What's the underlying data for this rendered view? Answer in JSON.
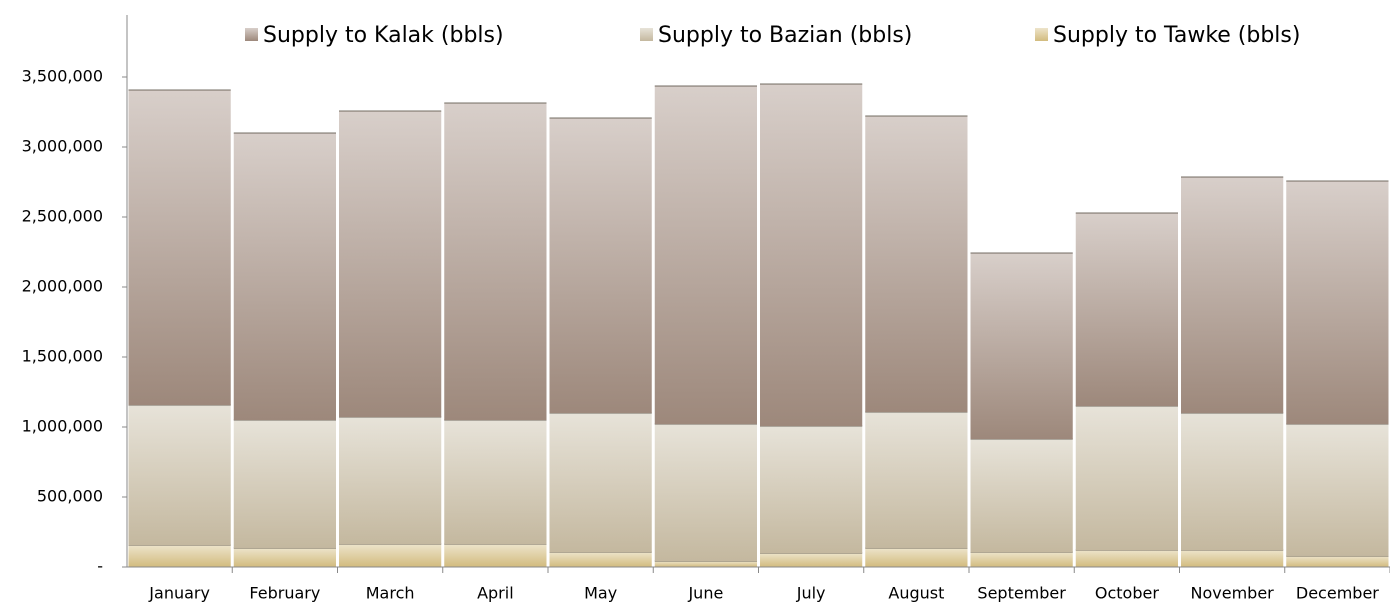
{
  "chart_data": {
    "type": "stacked_bar",
    "categories": [
      "January",
      "February",
      "March",
      "April",
      "May",
      "June",
      "July",
      "August",
      "September",
      "October",
      "November",
      "December"
    ],
    "series": [
      {
        "name": "Supply to Tawke (bbls)",
        "color": "#d2bb7e",
        "values": [
          157000,
          136000,
          164000,
          164000,
          107000,
          43000,
          100000,
          136000,
          107000,
          121000,
          121000,
          79000
        ]
      },
      {
        "name": "Supply to Bazian (bbls)",
        "color": "#c4b89f",
        "values": [
          1000000,
          914000,
          907000,
          886000,
          993000,
          978000,
          907000,
          971000,
          807000,
          1029000,
          979000,
          942000
        ]
      },
      {
        "name": "Supply to Kalak (bbls)",
        "color": "#9d887b",
        "values": [
          2250000,
          2050000,
          2186000,
          2264000,
          2107000,
          2415000,
          2443000,
          2114000,
          1329000,
          1379000,
          1686000,
          1736000
        ]
      }
    ],
    "ylim": [
      0,
      4000000
    ],
    "yticks": [
      {
        "value": 0,
        "label": "-"
      },
      {
        "value": 500000,
        "label": "500,000"
      },
      {
        "value": 1000000,
        "label": "1,000,000"
      },
      {
        "value": 1500000,
        "label": "1,500,000"
      },
      {
        "value": 2000000,
        "label": "2,000,000"
      },
      {
        "value": 2500000,
        "label": "2,500,000"
      },
      {
        "value": 3000000,
        "label": "3,000,000"
      },
      {
        "value": 3500000,
        "label": "3,500,000"
      }
    ],
    "legend": "top"
  }
}
